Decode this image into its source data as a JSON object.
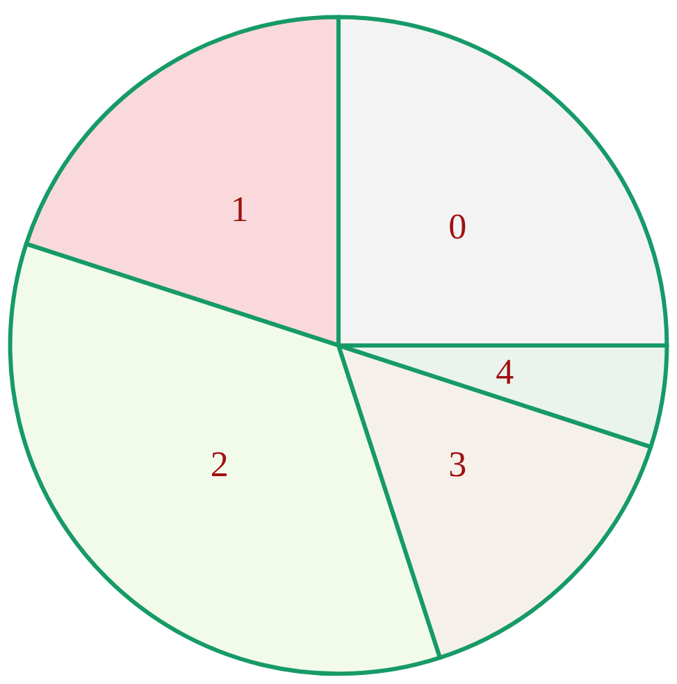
{
  "chart_data": {
    "type": "pie",
    "categories": [
      "0",
      "1",
      "2",
      "3",
      "4"
    ],
    "values": [
      25,
      20,
      35,
      15,
      5
    ],
    "colors": [
      "#f3f3f3",
      "#f9d9db",
      "#f2fbea",
      "#f5f1ea",
      "#ebf3ee"
    ],
    "legend": false
  }
}
